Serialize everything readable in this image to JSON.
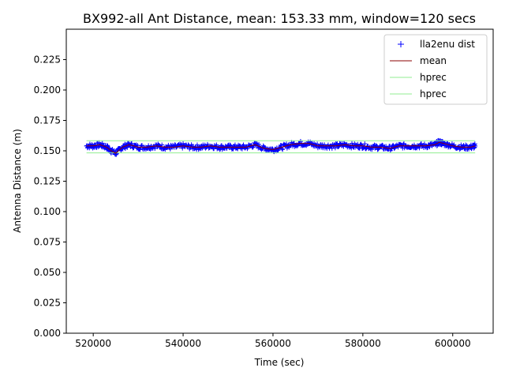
{
  "chart_data": {
    "type": "scatter",
    "title": "BX992-all Ant Distance, mean: 153.33 mm, window=120 secs",
    "xlabel": "Time (sec)",
    "ylabel": "Antenna Distance (m)",
    "xlim": [
      514000,
      609000
    ],
    "ylim": [
      0.0,
      0.25
    ],
    "x_ticks": [
      520000,
      540000,
      560000,
      580000,
      600000
    ],
    "x_tick_labels": [
      "520000",
      "540000",
      "560000",
      "580000",
      "600000"
    ],
    "y_ticks": [
      0.0,
      0.025,
      0.05,
      0.075,
      0.1,
      0.125,
      0.15,
      0.175,
      0.2,
      0.225
    ],
    "y_tick_labels": [
      "0.000",
      "0.025",
      "0.050",
      "0.075",
      "0.100",
      "0.125",
      "0.150",
      "0.175",
      "0.200",
      "0.225"
    ],
    "grid": false,
    "legend_position": "top-right",
    "colors": {
      "points": "#0000ff",
      "mean": "#8b0000",
      "hprec": "#90ee90"
    },
    "series": [
      {
        "name": "lla2enu dist",
        "kind": "points",
        "x_range": [
          518500,
          605000
        ],
        "typical_range": [
          0.149,
          0.158
        ],
        "x": [
          518500,
          520000,
          521500,
          523000,
          524000,
          525000,
          526500,
          528000,
          530000,
          532000,
          534000,
          536000,
          538000,
          540000,
          542000,
          544000,
          546000,
          548000,
          550000,
          552000,
          554000,
          556000,
          558000,
          560000,
          562000,
          564000,
          566000,
          568000,
          570000,
          572000,
          574000,
          576000,
          578000,
          580000,
          582000,
          584000,
          586000,
          588000,
          590000,
          592000,
          594000,
          596000,
          597000,
          598000,
          600000,
          602000,
          604000,
          605000
        ],
        "y": [
          0.154,
          0.154,
          0.155,
          0.153,
          0.15,
          0.148,
          0.153,
          0.155,
          0.153,
          0.153,
          0.154,
          0.153,
          0.153,
          0.154,
          0.153,
          0.153,
          0.154,
          0.153,
          0.153,
          0.153,
          0.153,
          0.155,
          0.152,
          0.151,
          0.153,
          0.155,
          0.156,
          0.156,
          0.154,
          0.154,
          0.154,
          0.155,
          0.154,
          0.154,
          0.153,
          0.153,
          0.152,
          0.154,
          0.154,
          0.154,
          0.154,
          0.155,
          0.157,
          0.156,
          0.154,
          0.153,
          0.153,
          0.154
        ]
      },
      {
        "name": "mean",
        "kind": "line",
        "x": [
          518500,
          520000,
          521500,
          523000,
          524000,
          525000,
          526500,
          528000,
          530000,
          532000,
          534000,
          536000,
          538000,
          540000,
          542000,
          544000,
          546000,
          548000,
          550000,
          552000,
          554000,
          556000,
          558000,
          560000,
          562000,
          564000,
          566000,
          568000,
          570000,
          572000,
          574000,
          576000,
          578000,
          580000,
          582000,
          584000,
          586000,
          588000,
          590000,
          592000,
          594000,
          596000,
          597000,
          598000,
          600000,
          602000,
          604000,
          605000
        ],
        "y": [
          0.154,
          0.154,
          0.155,
          0.153,
          0.15,
          0.148,
          0.153,
          0.155,
          0.153,
          0.153,
          0.154,
          0.153,
          0.153,
          0.154,
          0.153,
          0.153,
          0.154,
          0.153,
          0.153,
          0.153,
          0.153,
          0.155,
          0.152,
          0.151,
          0.153,
          0.155,
          0.156,
          0.156,
          0.154,
          0.154,
          0.154,
          0.155,
          0.154,
          0.154,
          0.153,
          0.153,
          0.152,
          0.154,
          0.154,
          0.154,
          0.154,
          0.155,
          0.157,
          0.156,
          0.154,
          0.153,
          0.153,
          0.154
        ]
      },
      {
        "name": "hprec",
        "kind": "hline",
        "x": [
          518500,
          605000
        ],
        "y": 0.1583
      },
      {
        "name": "hprec",
        "kind": "hline",
        "x": [
          518500,
          605000
        ],
        "y": 0.1483
      }
    ]
  }
}
